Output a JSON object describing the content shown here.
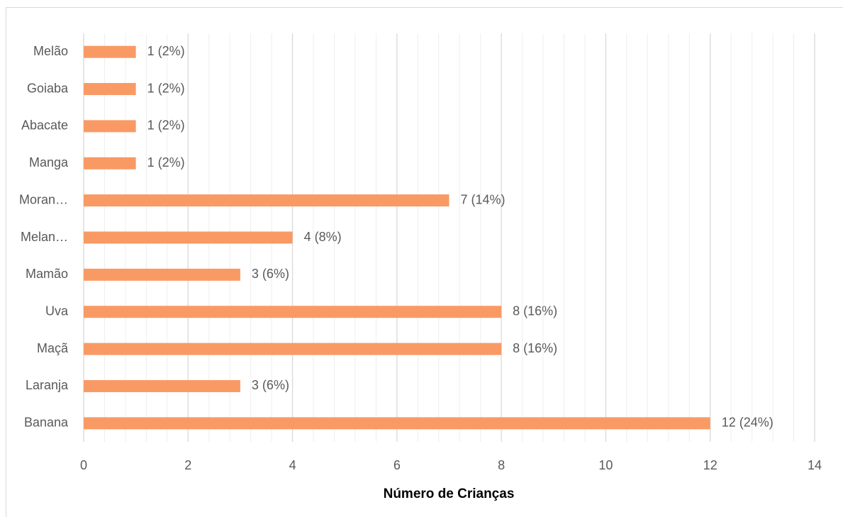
{
  "chart_data": {
    "type": "barh",
    "xlabel": "Número de Crianças",
    "categories": [
      "Banana",
      "Laranja",
      "Maçã",
      "Uva",
      "Mamão",
      "Melan…",
      "Moran…",
      "Manga",
      "Abacate",
      "Goiaba",
      "Melão"
    ],
    "values": [
      12,
      3,
      8,
      8,
      3,
      4,
      7,
      1,
      1,
      1,
      1
    ],
    "value_labels": [
      "12 (24%)",
      "3 (6%)",
      "8 (16%)",
      "8 (16%)",
      "3 (6%)",
      "4 (8%)",
      "7 (14%)",
      "1 (2%)",
      "1 (2%)",
      "1 (2%)",
      "1 (2%)"
    ],
    "color": "#f99a65",
    "xlim": [
      0,
      14
    ],
    "xticks": [
      0,
      2,
      4,
      6,
      8,
      10,
      12,
      14
    ],
    "xminorticks": [
      0.4,
      0.8,
      1.2,
      1.6,
      2.4,
      2.8,
      3.2,
      3.6,
      4.4,
      4.8,
      5.2,
      5.6,
      6.4,
      6.8,
      7.2,
      7.6,
      8.4,
      8.8,
      9.2,
      9.6,
      10.4,
      10.8,
      11.2,
      11.6,
      12.4,
      12.8,
      13.2,
      13.6
    ],
    "grid": true
  }
}
